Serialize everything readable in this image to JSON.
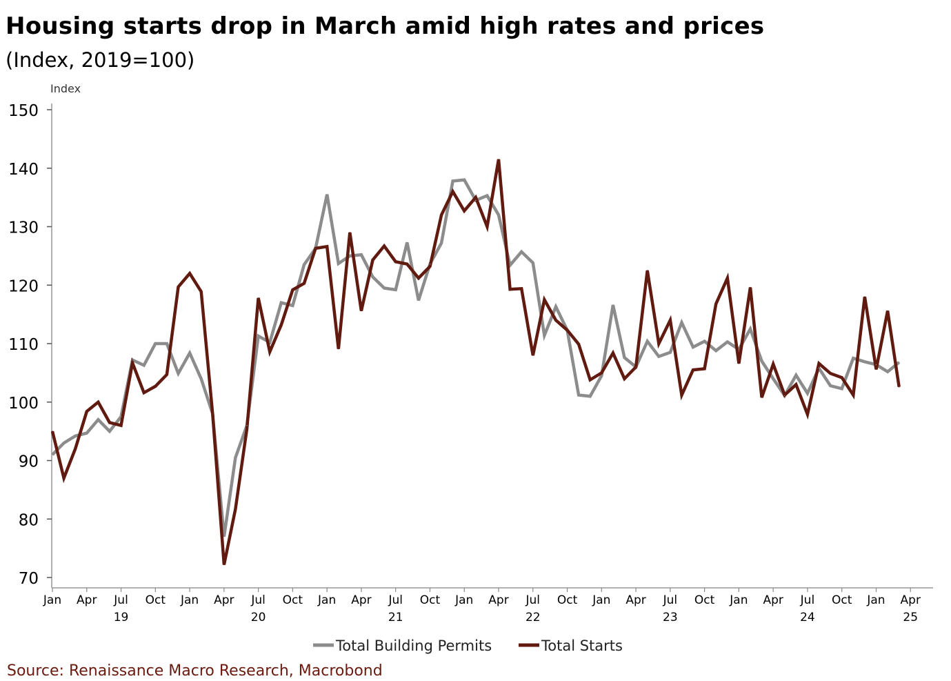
{
  "title": "Housing starts drop in March amid high rates and prices",
  "subtitle": "(Index, 2019=100)",
  "source": "Source: Renaissance Macro Research, Macrobond",
  "colors": {
    "permits": "#8c8c8c",
    "starts": "#611a0f",
    "axis": "#b0b0b0"
  },
  "chart_data": {
    "type": "line",
    "title": "Housing starts drop in March amid high rates and prices",
    "subtitle": "(Index, 2019=100)",
    "ylabel": "Index",
    "xlabel": "",
    "ylim": [
      70,
      150
    ],
    "yticks": [
      "70",
      "80",
      "90",
      "100",
      "110",
      "120",
      "130",
      "140",
      "150"
    ],
    "xlim": [
      "2019-01",
      "2025-04"
    ],
    "x_ticks": [
      {
        "label": "Jan",
        "year": ""
      },
      {
        "label": "Apr",
        "year": ""
      },
      {
        "label": "Jul",
        "year": "19"
      },
      {
        "label": "Oct",
        "year": ""
      },
      {
        "label": "Jan",
        "year": ""
      },
      {
        "label": "Apr",
        "year": ""
      },
      {
        "label": "Jul",
        "year": "20"
      },
      {
        "label": "Oct",
        "year": ""
      },
      {
        "label": "Jan",
        "year": ""
      },
      {
        "label": "Apr",
        "year": ""
      },
      {
        "label": "Jul",
        "year": "21"
      },
      {
        "label": "Oct",
        "year": ""
      },
      {
        "label": "Jan",
        "year": ""
      },
      {
        "label": "Apr",
        "year": ""
      },
      {
        "label": "Jul",
        "year": "22"
      },
      {
        "label": "Oct",
        "year": ""
      },
      {
        "label": "Jan",
        "year": ""
      },
      {
        "label": "Apr",
        "year": ""
      },
      {
        "label": "Jul",
        "year": "23"
      },
      {
        "label": "Oct",
        "year": ""
      },
      {
        "label": "Jan",
        "year": ""
      },
      {
        "label": "Apr",
        "year": ""
      },
      {
        "label": "Jul",
        "year": "24"
      },
      {
        "label": "Oct",
        "year": ""
      },
      {
        "label": "Jan",
        "year": ""
      },
      {
        "label": "Apr",
        "year": "25"
      }
    ],
    "legend_position": "bottom",
    "grid": false,
    "x": [
      "2019-01",
      "2019-02",
      "2019-03",
      "2019-04",
      "2019-05",
      "2019-06",
      "2019-07",
      "2019-08",
      "2019-09",
      "2019-10",
      "2019-11",
      "2019-12",
      "2020-01",
      "2020-02",
      "2020-03",
      "2020-04",
      "2020-05",
      "2020-06",
      "2020-07",
      "2020-08",
      "2020-09",
      "2020-10",
      "2020-11",
      "2020-12",
      "2021-01",
      "2021-02",
      "2021-03",
      "2021-04",
      "2021-05",
      "2021-06",
      "2021-07",
      "2021-08",
      "2021-09",
      "2021-10",
      "2021-11",
      "2021-12",
      "2022-01",
      "2022-02",
      "2022-03",
      "2022-04",
      "2022-05",
      "2022-06",
      "2022-07",
      "2022-08",
      "2022-09",
      "2022-10",
      "2022-11",
      "2022-12",
      "2023-01",
      "2023-02",
      "2023-03",
      "2023-04",
      "2023-05",
      "2023-06",
      "2023-07",
      "2023-08",
      "2023-09",
      "2023-10",
      "2023-11",
      "2023-12",
      "2024-01",
      "2024-02",
      "2024-03",
      "2024-04",
      "2024-05",
      "2024-06",
      "2024-07",
      "2024-08",
      "2024-09",
      "2024-10",
      "2024-11",
      "2024-12",
      "2025-01",
      "2025-02",
      "2025-03"
    ],
    "series": [
      {
        "name": "Total Building Permits",
        "values": [
          91,
          93,
          94.2,
          94.7,
          97,
          95,
          97.5,
          107.2,
          106.3,
          110,
          110,
          104.9,
          108.4,
          104,
          98,
          77,
          90.5,
          96,
          111.3,
          110.2,
          117,
          116.5,
          123.5,
          126.3,
          135.5,
          123.7,
          125,
          125.2,
          121.4,
          119.5,
          119.2,
          127.3,
          117.4,
          123.6,
          127.2,
          137.8,
          138,
          134.5,
          135.3,
          132,
          123.4,
          125.7,
          123.8,
          111.4,
          116.3,
          112.3,
          101.2,
          101,
          104.5,
          116.6,
          107.6,
          106,
          110.4,
          107.8,
          108.5,
          113.6,
          109.4,
          110.4,
          108.8,
          110.3,
          109,
          112.5,
          107,
          104,
          101.1,
          104.6,
          101.5,
          105.8,
          102.8,
          102.3,
          107.5,
          106.9,
          106.4,
          105.2,
          106.8
        ]
      },
      {
        "name": "Total Starts",
        "values": [
          95,
          87,
          92,
          98.4,
          100,
          96.5,
          96,
          106.7,
          101.6,
          102.7,
          104.7,
          119.7,
          122,
          118.9,
          98,
          72.2,
          81.7,
          95.4,
          117.8,
          108.6,
          113.2,
          119.2,
          120.3,
          126.3,
          126.6,
          109.1,
          129,
          115.6,
          124.3,
          126.7,
          124,
          123.6,
          121.2,
          123.2,
          132,
          136,
          132.7,
          135,
          130,
          141.5,
          119.3,
          119.4,
          108,
          117.5,
          114,
          112.3,
          109.9,
          103.8,
          105,
          108.4,
          104,
          106,
          122.5,
          110,
          114,
          101.2,
          105.5,
          105.7,
          116.8,
          121.2,
          106.6,
          119.6,
          100.8,
          106.5,
          101.2,
          103,
          97.9,
          106.6,
          104.9,
          104.2,
          101.2,
          118,
          105.6,
          115.6,
          102.6
        ]
      }
    ]
  }
}
